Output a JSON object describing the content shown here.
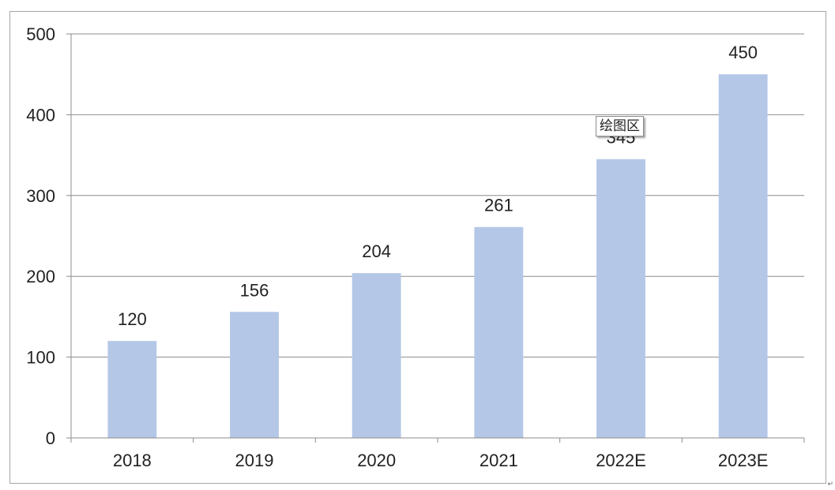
{
  "chart_data": {
    "type": "bar",
    "categories": [
      "2018",
      "2019",
      "2020",
      "2021",
      "2022E",
      "2023E"
    ],
    "values": [
      120,
      156,
      204,
      261,
      345,
      450
    ],
    "value_labels": [
      "120",
      "156",
      "204",
      "261",
      "345",
      "450"
    ],
    "title": "",
    "xlabel": "",
    "ylabel": "",
    "ylim": [
      0,
      500
    ],
    "yticks": [
      0,
      100,
      200,
      300,
      400,
      500
    ],
    "ytick_labels": [
      "0",
      "100",
      "200",
      "300",
      "400",
      "500"
    ],
    "grid": true,
    "legend": "none",
    "bar_color": "#b4c7e7",
    "grid_color": "#8c8c8c"
  },
  "tooltip": {
    "text": "绘图区"
  },
  "corner_mark": "↵"
}
